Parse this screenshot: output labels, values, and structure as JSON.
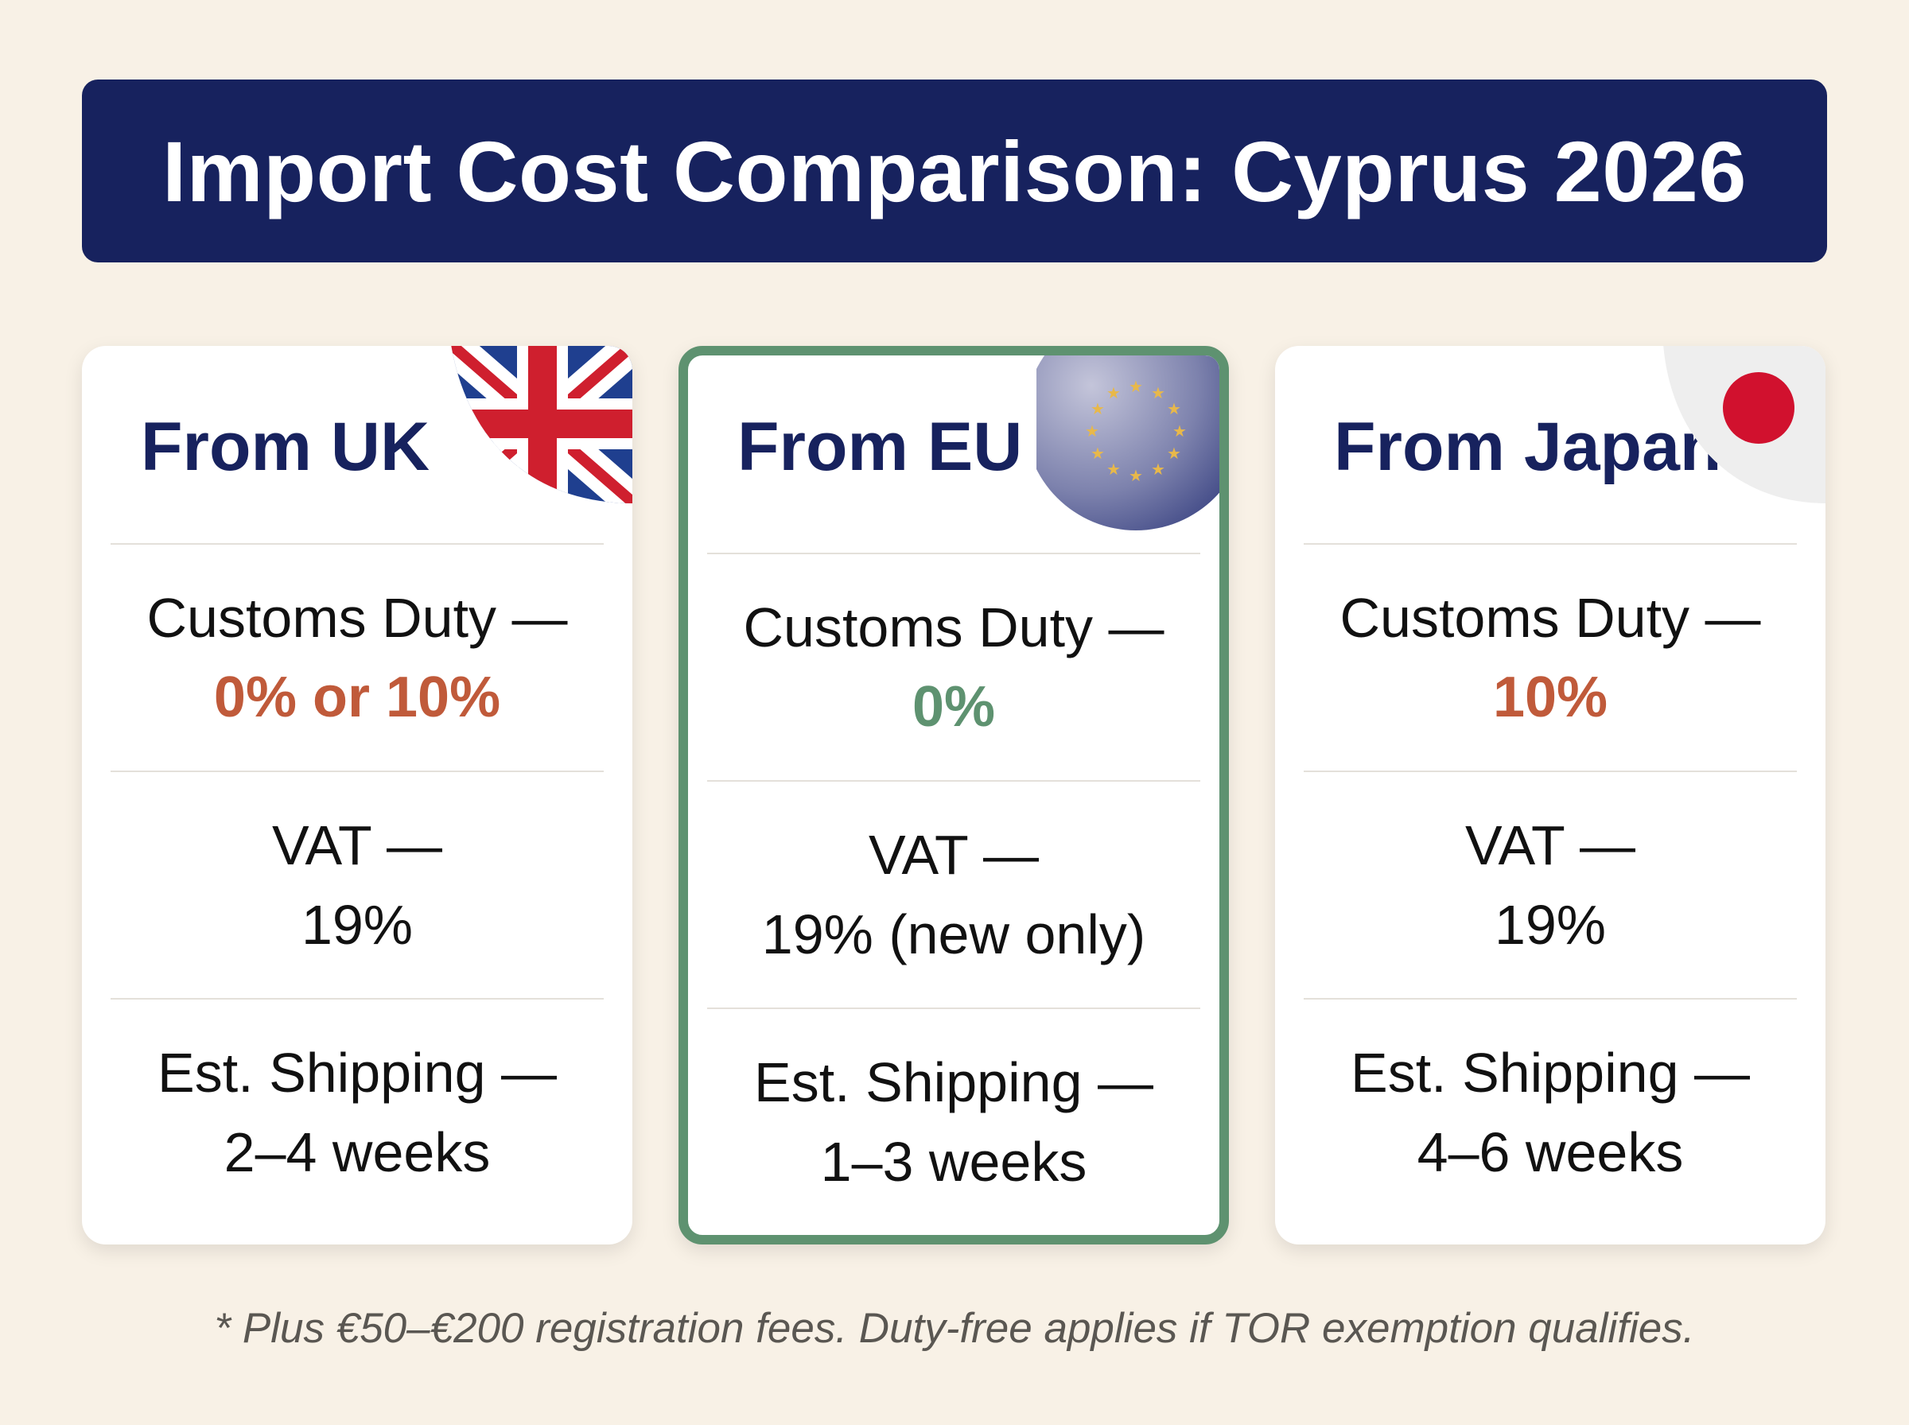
{
  "title": "Import Cost Comparison: Cyprus 2026",
  "colors": {
    "navy": "#17225e",
    "background": "#f8f1e6",
    "accent_orange": "#c05a3a",
    "accent_green": "#5e9270",
    "highlight_border": "#5e9270"
  },
  "cards": [
    {
      "title": "From UK",
      "flag": "uk-flag-icon",
      "duty_label": "Customs Duty —",
      "duty_value": "0% or 10%",
      "duty_color": "#c05a3a",
      "vat_label": "VAT —",
      "vat_value": "19%",
      "shipping_label": "Est. Shipping —",
      "shipping_value": "2–4 weeks"
    },
    {
      "title": "From EU",
      "flag": "eu-flag-icon",
      "highlighted": true,
      "duty_label": "Customs Duty —",
      "duty_value": "0%",
      "duty_color": "#5e9270",
      "vat_label": "VAT —",
      "vat_value": "19% (new only)",
      "shipping_label": "Est. Shipping —",
      "shipping_value": "1–3 weeks"
    },
    {
      "title": "From Japan",
      "flag": "japan-flag-icon",
      "duty_label": "Customs Duty —",
      "duty_value": "10%",
      "duty_color": "#c05a3a",
      "vat_label": "VAT —",
      "vat_value": "19%",
      "shipping_label": "Est. Shipping —",
      "shipping_value": "4–6 weeks"
    }
  ],
  "footnote": "* Plus €50–€200 registration fees. Duty-free applies if TOR exemption qualifies."
}
